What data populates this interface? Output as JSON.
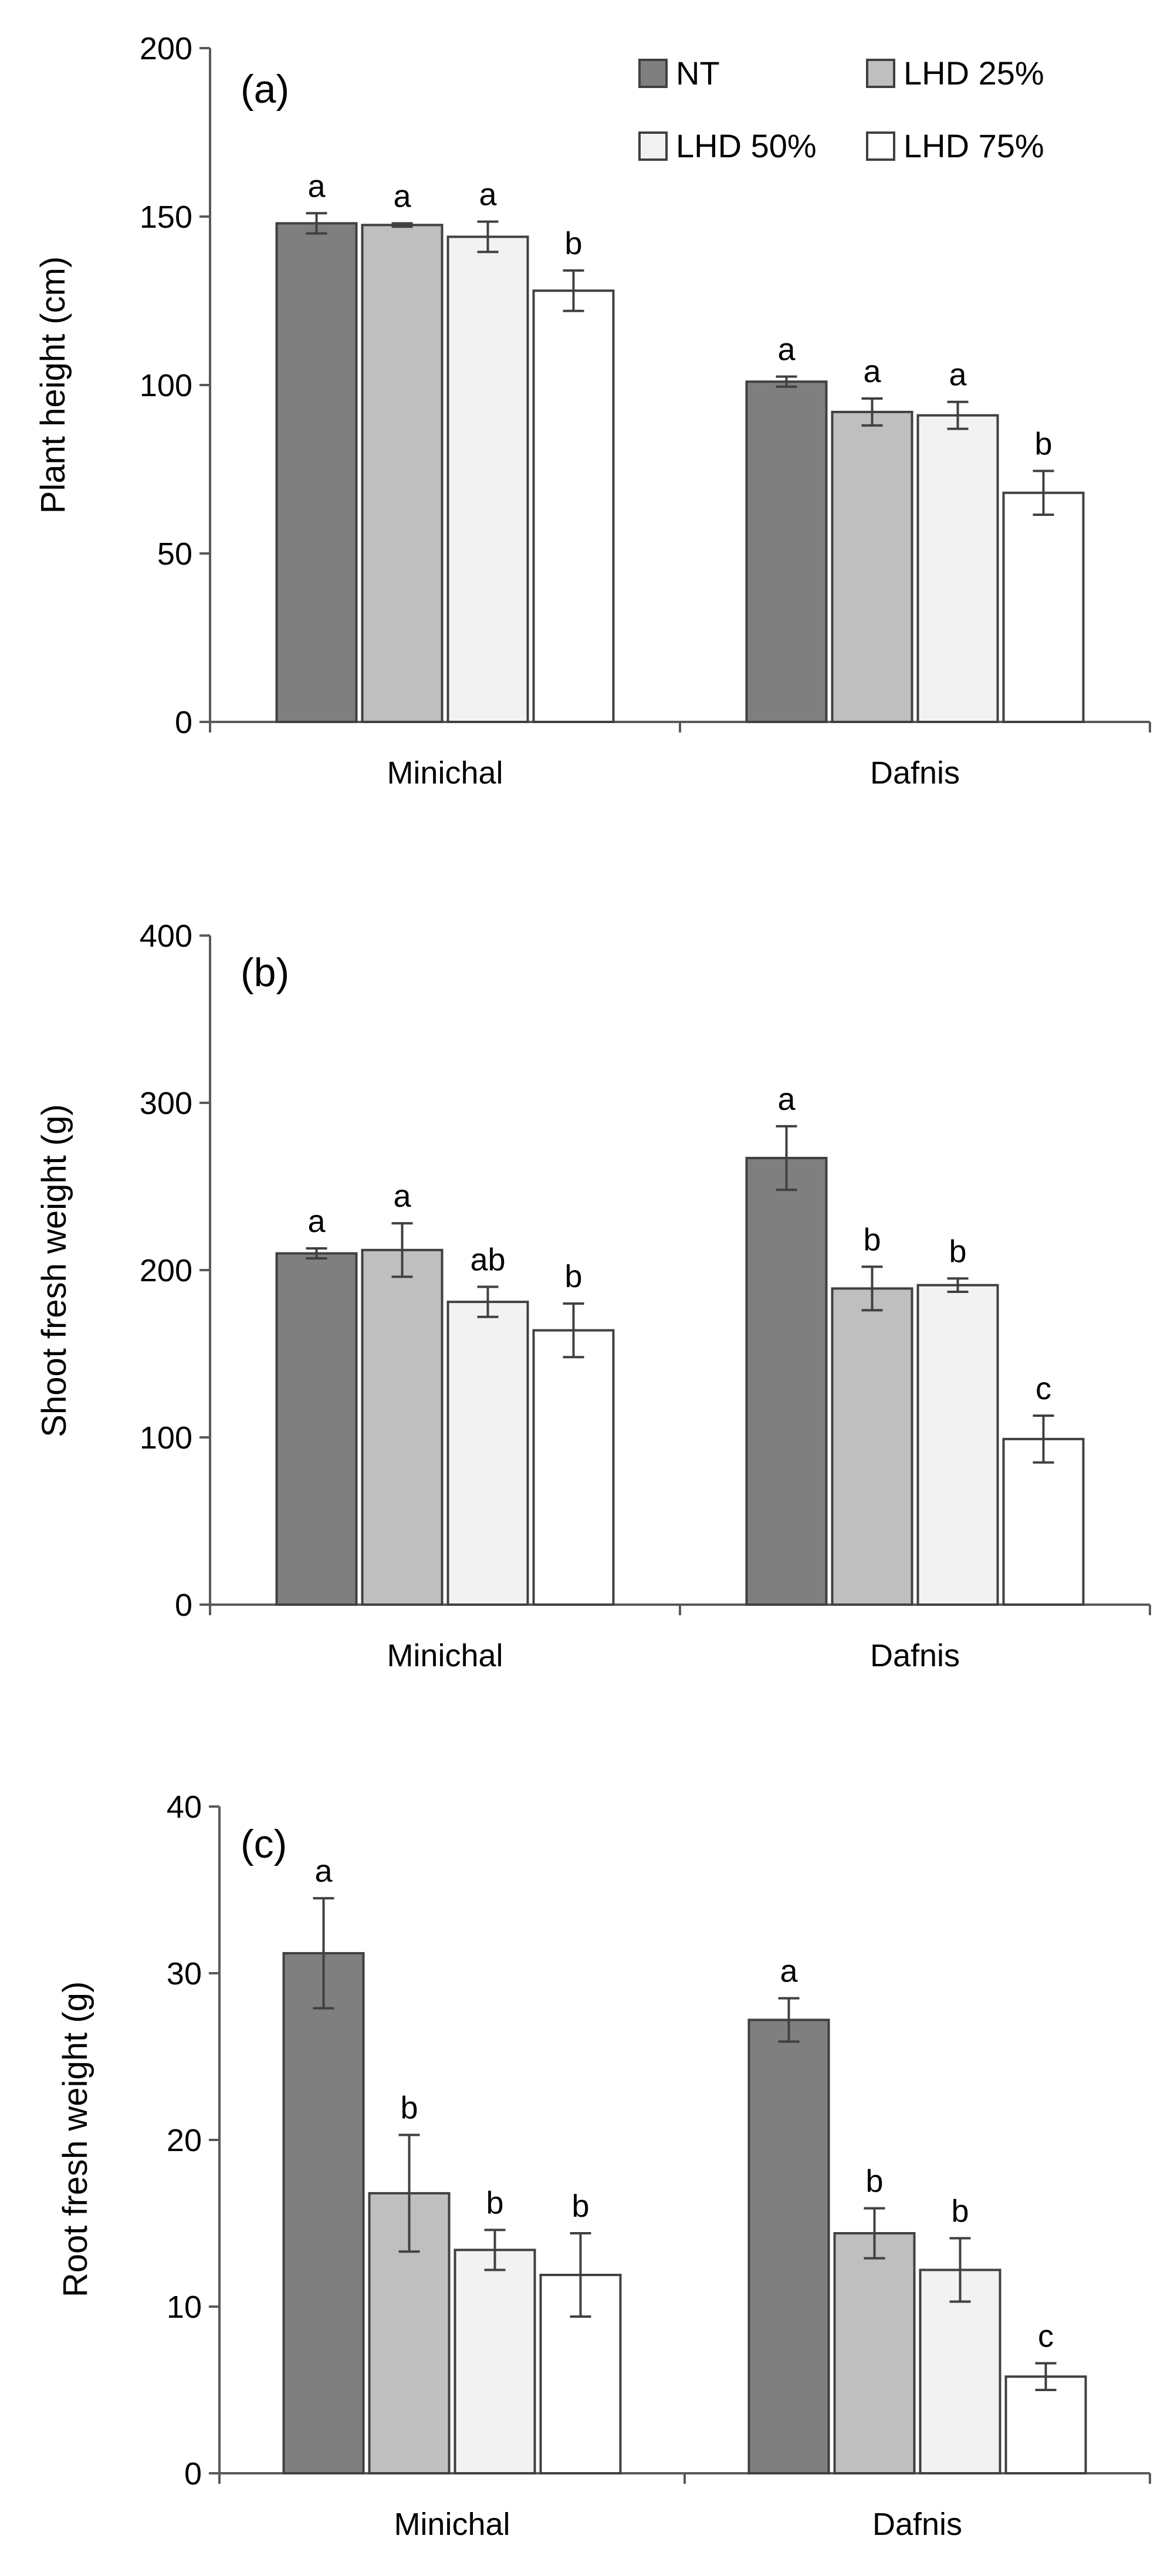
{
  "chart_data": [
    {
      "type": "bar",
      "panel_label": "(a)",
      "ylabel": "Plant height (cm)",
      "ylim": [
        0,
        200
      ],
      "yticks": [
        0,
        50,
        100,
        150,
        200
      ],
      "categories": [
        "Minichal",
        "Dafnis"
      ],
      "series": [
        {
          "name": "NT",
          "color": "#7f7f7f",
          "values": [
            148,
            101
          ],
          "errors": [
            3,
            1.5
          ],
          "letters": [
            "a",
            "a"
          ]
        },
        {
          "name": "LHD 25%",
          "color": "#bfbfbf",
          "values": [
            147.5,
            92
          ],
          "errors": [
            0.5,
            4
          ],
          "letters": [
            "a",
            "a"
          ]
        },
        {
          "name": "LHD 50%",
          "color": "#f2f2f2",
          "values": [
            144,
            91
          ],
          "errors": [
            4.5,
            4
          ],
          "letters": [
            "a",
            "a"
          ]
        },
        {
          "name": "LHD 75%",
          "color": "#ffffff",
          "values": [
            128,
            68
          ],
          "errors": [
            6,
            6.5
          ],
          "letters": [
            "b",
            "b"
          ]
        }
      ],
      "legend": "top-right"
    },
    {
      "type": "bar",
      "panel_label": "(b)",
      "ylabel": "Shoot fresh weight (g)",
      "ylim": [
        0,
        400
      ],
      "yticks": [
        0,
        100,
        200,
        300,
        400
      ],
      "categories": [
        "Minichal",
        "Dafnis"
      ],
      "series": [
        {
          "name": "NT",
          "color": "#7f7f7f",
          "values": [
            210,
            267
          ],
          "errors": [
            3,
            19
          ],
          "letters": [
            "a",
            "a"
          ]
        },
        {
          "name": "LHD 25%",
          "color": "#bfbfbf",
          "values": [
            212,
            189
          ],
          "errors": [
            16,
            13
          ],
          "letters": [
            "a",
            "b"
          ]
        },
        {
          "name": "LHD 50%",
          "color": "#f2f2f2",
          "values": [
            181,
            191
          ],
          "errors": [
            9,
            4
          ],
          "letters": [
            "ab",
            "b"
          ]
        },
        {
          "name": "LHD 75%",
          "color": "#ffffff",
          "values": [
            164,
            99
          ],
          "errors": [
            16,
            14
          ],
          "letters": [
            "b",
            "c"
          ]
        }
      ]
    },
    {
      "type": "bar",
      "panel_label": "(c)",
      "ylabel": "Root fresh weight (g)",
      "ylim": [
        0,
        40
      ],
      "yticks": [
        0,
        10,
        20,
        30,
        40
      ],
      "categories": [
        "Minichal",
        "Dafnis"
      ],
      "series": [
        {
          "name": "NT",
          "color": "#7f7f7f",
          "values": [
            31.2,
            27.2
          ],
          "errors": [
            3.3,
            1.3
          ],
          "letters": [
            "a",
            "a"
          ]
        },
        {
          "name": "LHD 25%",
          "color": "#bfbfbf",
          "values": [
            16.8,
            14.4
          ],
          "errors": [
            3.5,
            1.5
          ],
          "letters": [
            "b",
            "b"
          ]
        },
        {
          "name": "LHD 50%",
          "color": "#f2f2f2",
          "values": [
            13.4,
            12.2
          ],
          "errors": [
            1.2,
            1.9
          ],
          "letters": [
            "b",
            "b"
          ]
        },
        {
          "name": "LHD 75%",
          "color": "#ffffff",
          "values": [
            11.9,
            5.8
          ],
          "errors": [
            2.5,
            0.8
          ],
          "letters": [
            "b",
            "c"
          ]
        }
      ]
    }
  ]
}
